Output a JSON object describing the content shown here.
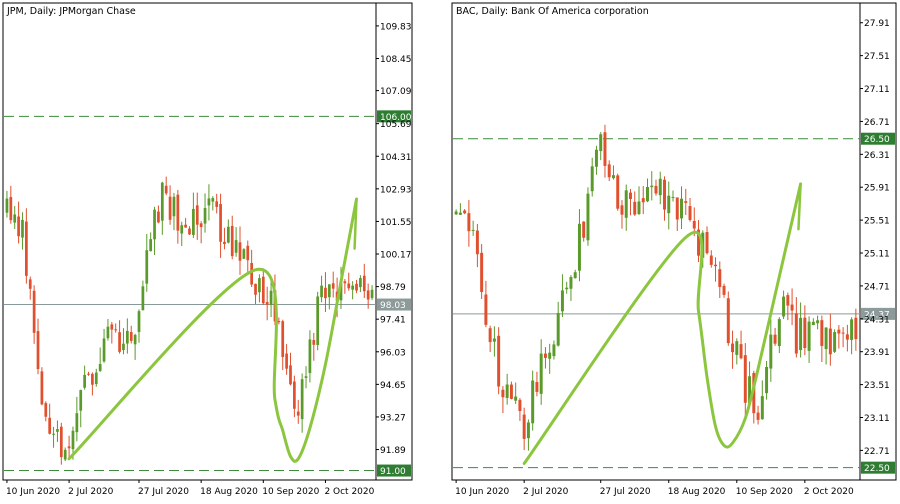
{
  "colors": {
    "background": "#ffffff",
    "frame": "#000000",
    "bull": "#5a9a2a",
    "bear": "#e0502e",
    "level_line": "#3c8c3c",
    "price_line": "#8a9a9a",
    "pattern": "#8cc63f",
    "level_label_bg": "#2e7d32",
    "price_label_bg": "#8c9a9a"
  },
  "icons": {
    "pattern": "cup-and-handle-curve"
  },
  "chart_data": [
    {
      "type": "candlestick",
      "title": "JPM, Daily:  JPMorgan Chase",
      "x_tick_labels": [
        "10 Jun 2020",
        "2 Jul 2020",
        "27 Jul 2020",
        "18 Aug 2020",
        "10 Sep 2020",
        "2 Oct 2020"
      ],
      "x_tick_bars": [
        0,
        16,
        34,
        50,
        66,
        82
      ],
      "y_tick_labels": [
        "109.83",
        "108.45",
        "107.09",
        "105.69",
        "104.31",
        "102.93",
        "101.55",
        "100.17",
        "98.79",
        "97.41",
        "96.03",
        "94.65",
        "93.27",
        "91.89"
      ],
      "ylim": [
        90.6,
        110.8
      ],
      "bar_count": 95,
      "resistance": {
        "value": 106.0,
        "label": "106.00"
      },
      "support": {
        "value": 91.0,
        "label": "91.00"
      },
      "last_price": {
        "value": 98.03,
        "label": "98.03"
      },
      "path_points": [
        [
          0,
          102.0
        ],
        [
          4,
          101.5
        ],
        [
          8,
          95.0
        ],
        [
          12,
          92.5
        ],
        [
          16,
          92.0
        ],
        [
          20,
          94.5
        ],
        [
          25,
          96.5
        ],
        [
          30,
          96.0
        ],
        [
          34,
          98.0
        ],
        [
          40,
          103.0
        ],
        [
          46,
          101.0
        ],
        [
          52,
          102.0
        ],
        [
          58,
          100.5
        ],
        [
          63,
          99.5
        ],
        [
          68,
          98.0
        ],
        [
          72,
          95.5
        ],
        [
          75,
          93.0
        ],
        [
          78,
          96.5
        ],
        [
          82,
          99.0
        ],
        [
          84,
          98.5
        ]
      ],
      "pattern_curve": [
        [
          16,
          91.5
        ],
        [
          64,
          99.5
        ],
        [
          69,
          94.0
        ],
        [
          71,
          92.7
        ],
        [
          73,
          91.6
        ],
        [
          75,
          91.5
        ],
        [
          78,
          92.8
        ],
        [
          82,
          95.5
        ],
        [
          86,
          99.0
        ],
        [
          90,
          102.5
        ]
      ],
      "pattern_tail": [
        [
          90,
          102.5
        ],
        [
          89.5,
          100.4
        ]
      ]
    },
    {
      "type": "candlestick",
      "title": "BAC, Daily:  Bank Of America corporation",
      "x_tick_labels": [
        "10 Jun 2020",
        "2 Jul 2020",
        "27 Jul 2020",
        "18 Aug 2020",
        "10 Sep 2020",
        "2 Oct 2020"
      ],
      "x_tick_bars": [
        0,
        16,
        34,
        50,
        66,
        82
      ],
      "y_tick_labels": [
        "27.91",
        "27.51",
        "27.11",
        "26.71",
        "26.31",
        "25.91",
        "25.51",
        "25.11",
        "24.71",
        "24.31",
        "23.91",
        "23.51",
        "23.11",
        "22.71"
      ],
      "ylim": [
        22.35,
        28.15
      ],
      "bar_count": 95,
      "resistance": {
        "value": 26.5,
        "label": "26.50"
      },
      "support": {
        "value": 22.5,
        "label": "22.50"
      },
      "last_price": {
        "value": 24.37,
        "label": "24.37"
      },
      "path_points": [
        [
          0,
          25.6
        ],
        [
          4,
          25.3
        ],
        [
          8,
          24.0
        ],
        [
          12,
          23.4
        ],
        [
          16,
          23.0
        ],
        [
          20,
          23.8
        ],
        [
          25,
          24.5
        ],
        [
          30,
          25.5
        ],
        [
          34,
          26.4
        ],
        [
          38,
          25.8
        ],
        [
          42,
          25.6
        ],
        [
          46,
          25.9
        ],
        [
          50,
          25.8
        ],
        [
          54,
          25.5
        ],
        [
          58,
          25.2
        ],
        [
          63,
          24.4
        ],
        [
          68,
          23.5
        ],
        [
          71,
          23.3
        ],
        [
          74,
          24.0
        ],
        [
          78,
          24.5
        ],
        [
          80,
          24.1
        ]
      ],
      "pattern_curve": [
        [
          16,
          22.55
        ],
        [
          54,
          25.3
        ],
        [
          57,
          24.4
        ],
        [
          59,
          23.6
        ],
        [
          61,
          23.0
        ],
        [
          63,
          22.77
        ],
        [
          65,
          22.8
        ],
        [
          68,
          23.1
        ],
        [
          71,
          23.7
        ],
        [
          75,
          24.6
        ],
        [
          79,
          25.5
        ],
        [
          81,
          25.95
        ]
      ],
      "pattern_tail": [
        [
          81,
          25.95
        ],
        [
          80.5,
          25.4
        ]
      ]
    }
  ]
}
